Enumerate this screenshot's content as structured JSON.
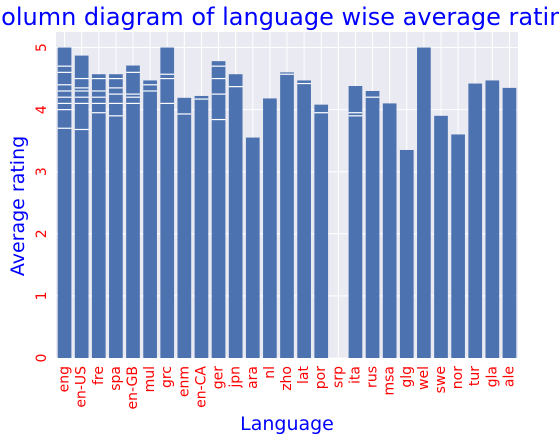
{
  "chart_data": {
    "type": "bar",
    "title": "Column diagram of language wise average rating",
    "xlabel": "Language",
    "ylabel": "Average rating",
    "ylim": [
      0,
      5.25
    ],
    "yticks": [
      0,
      1,
      2,
      3,
      4,
      5
    ],
    "grid": true,
    "colors": {
      "bar": "#4c72b0",
      "segment_line": "#ffffff",
      "plot_background": "#eaeaf2",
      "grid": "#ffffff",
      "title": "#0000ff",
      "axis_label": "#0000ff",
      "tick_label": "#ff0000"
    },
    "categories": [
      "eng",
      "en-US",
      "fre",
      "spa",
      "en-GB",
      "mul",
      "grc",
      "enm",
      "en-CA",
      "ger",
      "jpn",
      "ara",
      "nl",
      "zho",
      "lat",
      "por",
      "srp",
      "ita",
      "rus",
      "msa",
      "glg",
      "wel",
      "swe",
      "nor",
      "tur",
      "gla",
      "ale"
    ],
    "values": [
      5.0,
      4.87,
      4.57,
      4.57,
      4.71,
      4.47,
      5.0,
      4.19,
      4.22,
      4.78,
      4.57,
      3.55,
      4.18,
      4.6,
      4.47,
      4.08,
      0,
      4.38,
      4.3,
      4.1,
      3.35,
      5.0,
      3.9,
      3.6,
      4.42,
      4.47,
      4.35
    ],
    "overlaid_values": [
      [
        3.7,
        4.0,
        4.1,
        4.2,
        4.3,
        4.4,
        4.6,
        4.7
      ],
      [
        3.68,
        4.1,
        4.2,
        4.3,
        4.35,
        4.5
      ],
      [
        3.95,
        4.1,
        4.2,
        4.3,
        4.5
      ],
      [
        3.9,
        4.1,
        4.25,
        4.35,
        4.5
      ],
      [
        4.1,
        4.2,
        4.25,
        4.6
      ],
      [
        4.3,
        4.4
      ],
      [
        4.1,
        4.5,
        4.57
      ],
      [
        3.93
      ],
      [
        4.17
      ],
      [
        3.84,
        4.25,
        4.5,
        4.7
      ],
      [
        4.37
      ],
      [],
      [],
      [
        4.57
      ],
      [
        4.42
      ],
      [
        3.95
      ],
      [],
      [
        3.9,
        3.95
      ],
      [
        4.2
      ],
      [],
      [],
      [],
      [],
      [],
      [],
      [],
      []
    ]
  }
}
